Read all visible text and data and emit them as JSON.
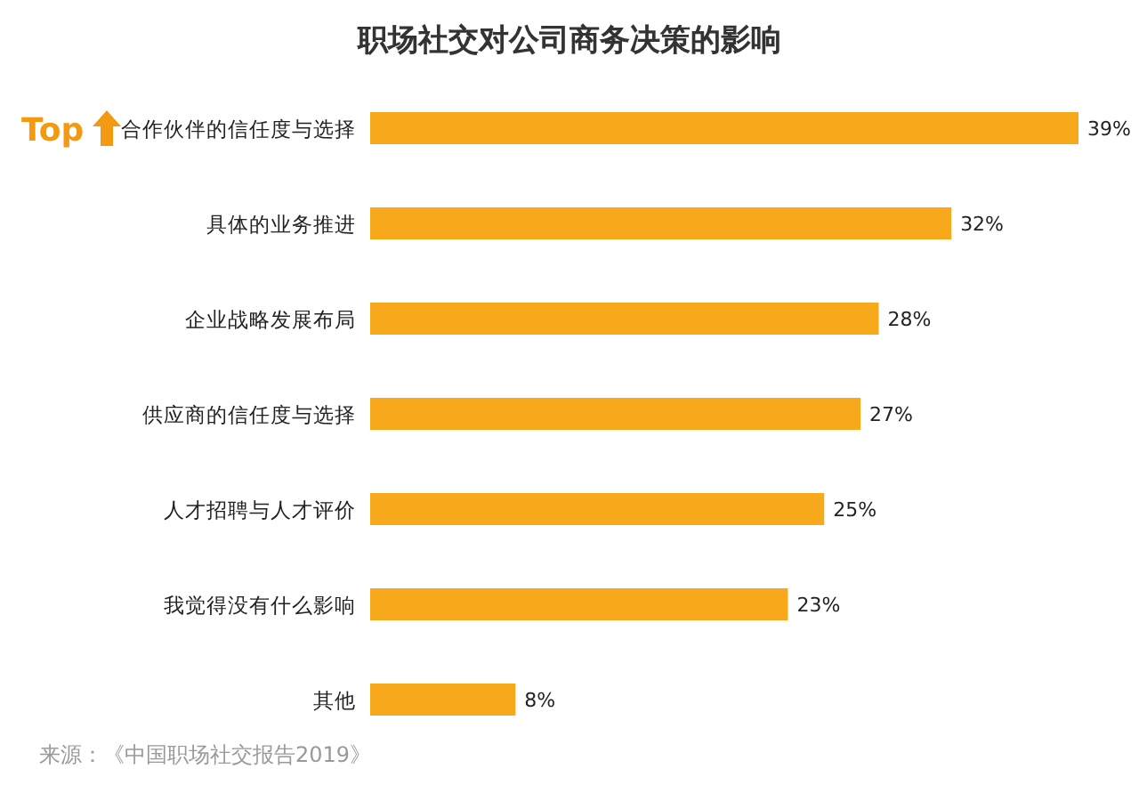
{
  "chart_data": {
    "type": "bar",
    "orientation": "horizontal",
    "title": "职场社交对公司商务决策的影响",
    "categories": [
      "合作伙伴的信任度与选择",
      "具体的业务推进",
      "企业战略发展布局",
      "供应商的信任度与选择",
      "人才招聘与人才评价",
      "我觉得没有什么影响",
      "其他"
    ],
    "values": [
      39,
      32,
      28,
      27,
      25,
      23,
      8
    ],
    "value_labels": [
      "39%",
      "32%",
      "28%",
      "27%",
      "25%",
      "23%",
      "8%"
    ],
    "color": "#f7a81b",
    "annotations": [
      "Top",
      "来源：《中国职场社交报告2019》"
    ]
  }
}
